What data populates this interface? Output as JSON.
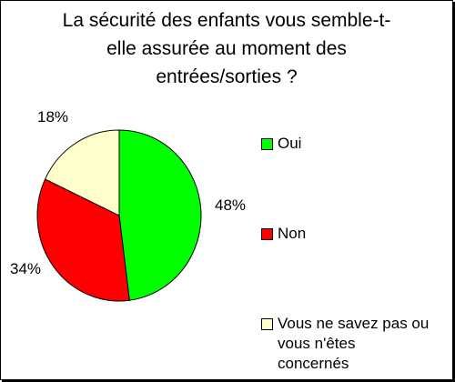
{
  "chart_data": {
    "type": "pie",
    "title": "La sécurité des enfants vous semble-t-\nelle assurée au moment des\nentrées/sorties ?",
    "slices": [
      {
        "name": "Oui",
        "value": 48,
        "label": "48%",
        "color": "#00ff00"
      },
      {
        "name": "Non",
        "value": 34,
        "label": "34%",
        "color": "#ff0000"
      },
      {
        "name": "Vous ne savez pas ou\nvous n'êtes\nconcernés",
        "value": 18,
        "label": "18%",
        "color": "#ffffcc"
      }
    ],
    "legend_position": "right"
  }
}
